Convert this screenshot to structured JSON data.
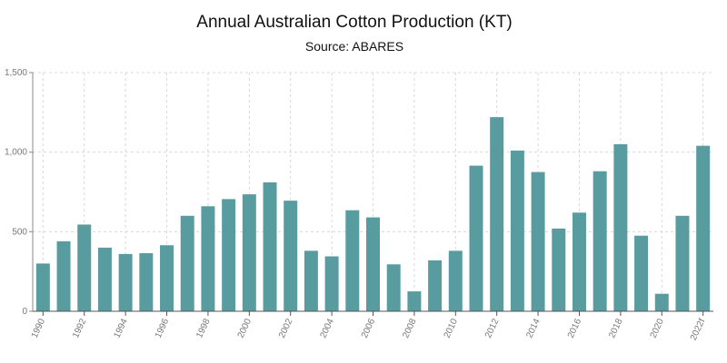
{
  "chart_data": {
    "type": "bar",
    "title": "Annual Australian Cotton Production (KT)",
    "subtitle": "Source: ABARES",
    "xlabel": "",
    "ylabel": "",
    "ylim": [
      0,
      1500
    ],
    "yticks": [
      0,
      500,
      1000,
      1500
    ],
    "ytick_labels": [
      "0",
      "500",
      "1,000",
      "1,500"
    ],
    "grid": true,
    "categories": [
      "1990",
      "1991",
      "1992",
      "1993",
      "1994",
      "1995",
      "1996",
      "1997",
      "1998",
      "1999",
      "2000",
      "2001",
      "2002",
      "2003",
      "2004",
      "2005",
      "2006",
      "2007",
      "2008",
      "2009",
      "2010",
      "2011",
      "2012",
      "2013",
      "2014",
      "2015",
      "2016",
      "2017",
      "2018",
      "2019",
      "2020",
      "2021",
      "2022f"
    ],
    "xtick_labels": [
      "1990",
      "1992",
      "1994",
      "1996",
      "1998",
      "2000",
      "2002",
      "2004",
      "2006",
      "2008",
      "2010",
      "2012",
      "2014",
      "2016",
      "2018",
      "2020",
      "2022f"
    ],
    "values": [
      300,
      440,
      545,
      400,
      360,
      365,
      415,
      600,
      660,
      705,
      735,
      810,
      695,
      380,
      345,
      635,
      590,
      295,
      125,
      320,
      380,
      915,
      1220,
      1010,
      875,
      520,
      620,
      880,
      1050,
      475,
      110,
      600,
      1040
    ],
    "bar_color": "#589c9f"
  }
}
